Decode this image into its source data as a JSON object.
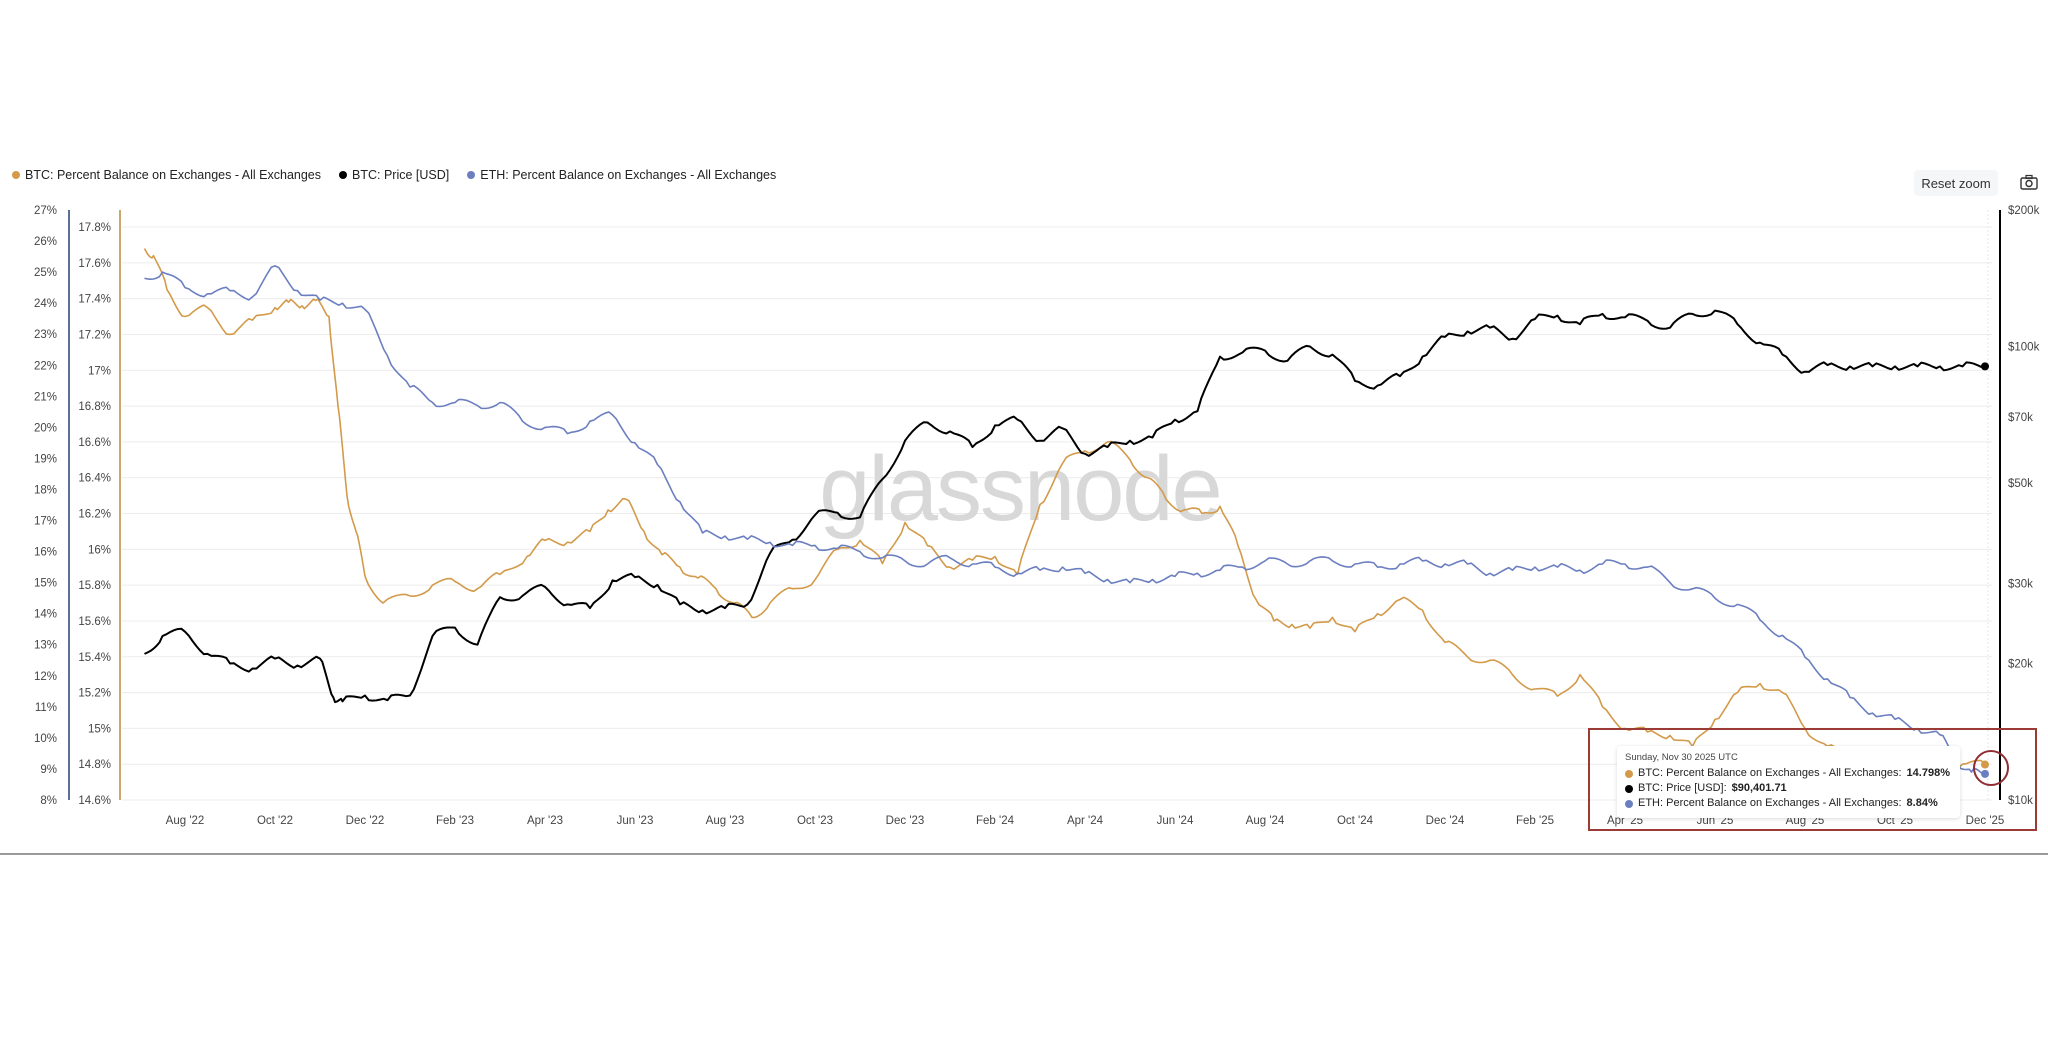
{
  "legend": [
    {
      "label": "BTC: Percent Balance on Exchanges - All Exchanges",
      "color": "#d39a4a"
    },
    {
      "label": "BTC: Price [USD]",
      "color": "#000000"
    },
    {
      "label": "ETH: Percent Balance on Exchanges - All Exchanges",
      "color": "#6b7fc0"
    }
  ],
  "toolbar": {
    "reset_zoom_label": "Reset zoom",
    "camera_icon": "camera-icon"
  },
  "watermark": "glassnode",
  "tooltip": {
    "date": "Sunday, Nov 30 2025 UTC",
    "rows": [
      {
        "label": "BTC: Percent Balance on Exchanges - All Exchanges: ",
        "value": "14.798%",
        "color": "#d39a4a"
      },
      {
        "label": "BTC: Price [USD]: ",
        "value": "$90,401.71",
        "color": "#000000"
      },
      {
        "label": "ETH: Percent Balance on Exchanges - All Exchanges: ",
        "value": "8.84%",
        "color": "#6b7fc0"
      }
    ]
  },
  "chart_data": {
    "type": "line",
    "title": "",
    "x_ticks": [
      "Aug '22",
      "Oct '22",
      "Dec '22",
      "Feb '23",
      "Apr '23",
      "Jun '23",
      "Aug '23",
      "Oct '23",
      "Dec '23",
      "Feb '24",
      "Apr '24",
      "Jun '24",
      "Aug '24",
      "Oct '24",
      "Dec '24",
      "Feb '25",
      "Apr '25",
      "Jun '25",
      "Aug '25",
      "Oct '25",
      "Dec '25"
    ],
    "axes": {
      "eth_pct": {
        "side": "left-outer",
        "ticks": [
          "27%",
          "26%",
          "25%",
          "24%",
          "23%",
          "22%",
          "21%",
          "20%",
          "19%",
          "18%",
          "17%",
          "16%",
          "15%",
          "14%",
          "13%",
          "12%",
          "11%",
          "10%",
          "9%",
          "8%"
        ],
        "range": [
          8,
          27
        ],
        "color": "#5a6f96"
      },
      "btc_pct": {
        "side": "left-inner",
        "ticks": [
          "17.8%",
          "17.6%",
          "17.4%",
          "17.2%",
          "17%",
          "16.8%",
          "16.6%",
          "16.4%",
          "16.2%",
          "16%",
          "15.8%",
          "15.6%",
          "15.4%",
          "15.2%",
          "15%",
          "14.8%",
          "14.6%"
        ],
        "range": [
          14.6,
          17.9
        ],
        "color": "#c9a86a"
      },
      "btc_price": {
        "side": "right",
        "scale": "log",
        "ticks": [
          "$200k",
          "$100k",
          "$70k",
          "$50k",
          "$30k",
          "$20k",
          "$10k"
        ],
        "range": [
          10000,
          200000
        ],
        "color": "#000000"
      }
    },
    "x_months_index_note": "x = months since Jul 2022 start",
    "series": [
      {
        "name": "BTC: Percent Balance on Exchanges - All Exchanges",
        "axis": "btc_pct",
        "color": "#d39a4a",
        "x": [
          0.1,
          0.3,
          0.6,
          1.0,
          1.5,
          2.0,
          2.5,
          3.0,
          3.3,
          3.6,
          3.9,
          4.2,
          4.4,
          4.6,
          4.8,
          5.0,
          5.4,
          6.0,
          6.5,
          7.0,
          7.5,
          8.0,
          8.6,
          9.0,
          9.5,
          10.0,
          10.4,
          10.8,
          11.2,
          11.6,
          12.0,
          12.4,
          12.8,
          13.2,
          13.6,
          14.0,
          14.5,
          15.0,
          15.5,
          16.0,
          16.5,
          17.0,
          17.5,
          18.0,
          18.5,
          19.0,
          19.5,
          20.0,
          20.5,
          21.0,
          21.5,
          22.0,
          22.4,
          22.8,
          23.2,
          23.6,
          24.0,
          24.4,
          24.8,
          25.2,
          25.6,
          26.0,
          26.5,
          27.0,
          27.5,
          28.0,
          28.5,
          29.0,
          29.5,
          30.0,
          30.5,
          31.0,
          31.5,
          32.0,
          32.5,
          33.0,
          33.5,
          34.0,
          34.5,
          35.0,
          35.5,
          36.0,
          36.5,
          37.0,
          37.5,
          38.0,
          38.5,
          39.0,
          39.5,
          40.0,
          40.5,
          41.0
        ],
        "y": [
          17.68,
          17.64,
          17.45,
          17.3,
          17.35,
          17.2,
          17.28,
          17.35,
          17.38,
          17.36,
          17.39,
          17.3,
          16.8,
          16.3,
          16.1,
          15.85,
          15.7,
          15.74,
          15.8,
          15.82,
          15.78,
          15.86,
          15.96,
          16.05,
          16.04,
          16.1,
          16.22,
          16.28,
          16.1,
          15.97,
          15.9,
          15.84,
          15.78,
          15.7,
          15.62,
          15.7,
          15.78,
          15.83,
          16.0,
          16.05,
          15.92,
          16.15,
          16.02,
          15.9,
          15.94,
          15.96,
          15.86,
          16.25,
          16.48,
          16.55,
          16.6,
          16.5,
          16.4,
          16.28,
          16.22,
          16.2,
          16.24,
          16.02,
          15.72,
          15.6,
          15.58,
          15.56,
          15.62,
          15.54,
          15.64,
          15.72,
          15.66,
          15.48,
          15.4,
          15.38,
          15.3,
          15.22,
          15.18,
          15.3,
          15.12,
          15.0,
          14.98,
          14.96,
          14.9,
          15.05,
          15.2,
          15.25,
          15.2,
          15.0,
          14.9,
          14.82,
          14.8,
          14.81,
          14.83,
          14.82,
          14.8,
          14.798
        ]
      },
      {
        "name": "BTC: Price [USD]",
        "axis": "btc_price",
        "color": "#000000",
        "x": [
          0.1,
          0.5,
          1.0,
          1.5,
          2.0,
          2.5,
          3.0,
          3.5,
          4.0,
          4.3,
          4.5,
          5.0,
          5.5,
          6.0,
          6.5,
          7.0,
          7.5,
          8.0,
          8.5,
          9.0,
          9.5,
          10.0,
          10.5,
          11.0,
          11.5,
          12.0,
          12.5,
          13.0,
          13.5,
          14.0,
          14.5,
          15.0,
          15.5,
          16.0,
          16.5,
          17.0,
          17.5,
          18.0,
          18.5,
          19.0,
          19.5,
          20.0,
          20.5,
          21.0,
          21.5,
          22.0,
          22.5,
          23.0,
          23.5,
          24.0,
          24.5,
          25.0,
          25.5,
          26.0,
          26.5,
          27.0,
          27.5,
          28.0,
          28.5,
          29.0,
          29.5,
          30.0,
          30.5,
          31.0,
          31.5,
          32.0,
          32.5,
          33.0,
          33.5,
          34.0,
          34.5,
          35.0,
          35.5,
          36.0,
          36.5,
          37.0,
          37.5,
          38.0,
          38.5,
          39.0,
          39.5,
          40.0,
          40.5,
          41.0
        ],
        "y": [
          21000,
          23000,
          23500,
          21000,
          20000,
          19500,
          20500,
          19800,
          20500,
          16800,
          16500,
          17000,
          16600,
          17000,
          23000,
          24000,
          22000,
          28000,
          28200,
          29500,
          27000,
          26500,
          30500,
          31000,
          29800,
          27000,
          26200,
          26500,
          27000,
          35000,
          37500,
          42500,
          43000,
          42000,
          51000,
          62000,
          68000,
          65000,
          60000,
          67000,
          69000,
          62000,
          66000,
          58000,
          60000,
          62000,
          63000,
          69000,
          72000,
          95000,
          97000,
          98000,
          93000,
          100000,
          96000,
          84000,
          82000,
          86000,
          95000,
          105000,
          108000,
          110000,
          104000,
          115000,
          117000,
          112000,
          118000,
          116000,
          114000,
          110000,
          118000,
          120000,
          112000,
          102000,
          96000,
          88000,
          91000,
          90401,
          90401,
          90401,
          90401,
          90401,
          90401,
          90401
        ]
      },
      {
        "name": "ETH: Percent Balance on Exchanges - All Exchanges",
        "axis": "eth_pct",
        "color": "#6b7fc0",
        "x": [
          0.1,
          0.5,
          1.0,
          1.5,
          2.0,
          2.5,
          3.0,
          3.5,
          4.0,
          4.5,
          5.0,
          5.5,
          6.0,
          6.5,
          7.0,
          7.5,
          8.0,
          8.5,
          9.0,
          9.5,
          10.0,
          10.5,
          11.0,
          11.5,
          12.0,
          12.5,
          13.0,
          13.5,
          14.0,
          14.5,
          15.0,
          15.5,
          16.0,
          16.5,
          17.0,
          17.5,
          18.0,
          18.5,
          19.0,
          19.5,
          20.0,
          20.5,
          21.0,
          21.5,
          22.0,
          22.5,
          23.0,
          23.5,
          24.0,
          24.5,
          25.0,
          25.5,
          26.0,
          26.5,
          27.0,
          27.5,
          28.0,
          28.5,
          29.0,
          29.5,
          30.0,
          30.5,
          31.0,
          31.5,
          32.0,
          32.5,
          33.0,
          33.5,
          34.0,
          34.5,
          35.0,
          35.5,
          36.0,
          36.5,
          37.0,
          37.5,
          38.0,
          38.5,
          39.0,
          39.5,
          40.0,
          40.4,
          40.7,
          41.0
        ],
        "y": [
          24.8,
          25.0,
          24.5,
          24.3,
          24.4,
          24.2,
          25.2,
          24.4,
          24.1,
          24.0,
          23.8,
          22.3,
          21.3,
          20.8,
          20.8,
          20.7,
          20.8,
          20.2,
          20.0,
          19.8,
          20.2,
          20.4,
          19.5,
          18.8,
          17.6,
          16.6,
          16.5,
          16.4,
          16.3,
          16.2,
          16.2,
          16.1,
          16.0,
          15.8,
          15.7,
          15.6,
          15.8,
          15.6,
          15.5,
          15.3,
          15.4,
          15.5,
          15.3,
          15.1,
          15.0,
          15.1,
          15.2,
          15.3,
          15.4,
          15.5,
          15.7,
          15.6,
          15.7,
          15.7,
          15.6,
          15.5,
          15.6,
          15.7,
          15.6,
          15.6,
          15.3,
          15.4,
          15.5,
          15.5,
          15.4,
          15.6,
          15.6,
          15.5,
          15.0,
          14.8,
          14.5,
          14.3,
          13.8,
          13.3,
          12.6,
          11.9,
          11.3,
          10.8,
          10.6,
          10.3,
          10.1,
          9.2,
          8.9,
          8.84
        ]
      }
    ],
    "annotations": [
      "glassnode watermark",
      "red highlight box around tooltip",
      "red circle around last data point (Nov 30 2025)"
    ],
    "grid": true,
    "legend_position": "top-left"
  }
}
